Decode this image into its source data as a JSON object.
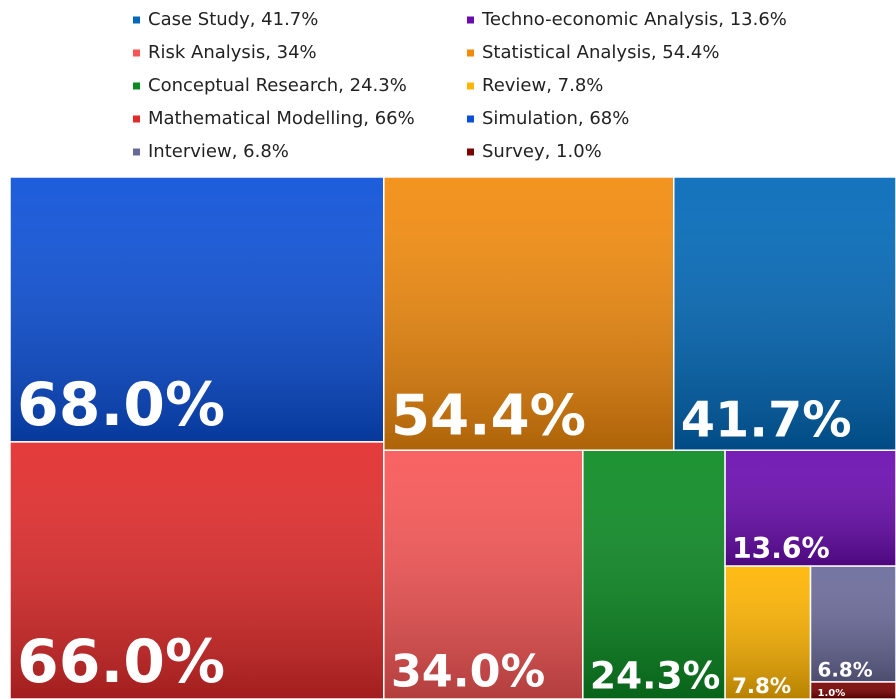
{
  "chart_data": {
    "type": "treemap",
    "categories": [
      "Case Study, 41.7%",
      "Techno-economic Analysis, 13.6%",
      "Risk Analysis, 34%",
      "Statistical Analysis, 54.4%",
      "Conceptual Research, 24.3%",
      "Review, 7.8%",
      "Mathematical Modelling, 66%",
      "Simulation, 68%",
      "Interview, 6.8%",
      "Survey, 1.0%"
    ],
    "values": [
      41.7,
      13.6,
      34,
      54.4,
      24.3,
      7.8,
      66,
      68,
      6.8,
      1.0
    ],
    "value_labels": [
      "41.7%",
      "13.6%",
      "34.0%",
      "54.4%",
      "24.3%",
      "7.8%",
      "66.0%",
      "68.0%",
      "6.8%",
      "1.0%"
    ],
    "colors": [
      "#0068b8",
      "#6a0bb0",
      "#f85555",
      "#f28a0c",
      "#0a8a22",
      "#ffb400",
      "#e22a2a",
      "#0a4fd8",
      "#6a6a9a",
      "#7a0000"
    ]
  }
}
